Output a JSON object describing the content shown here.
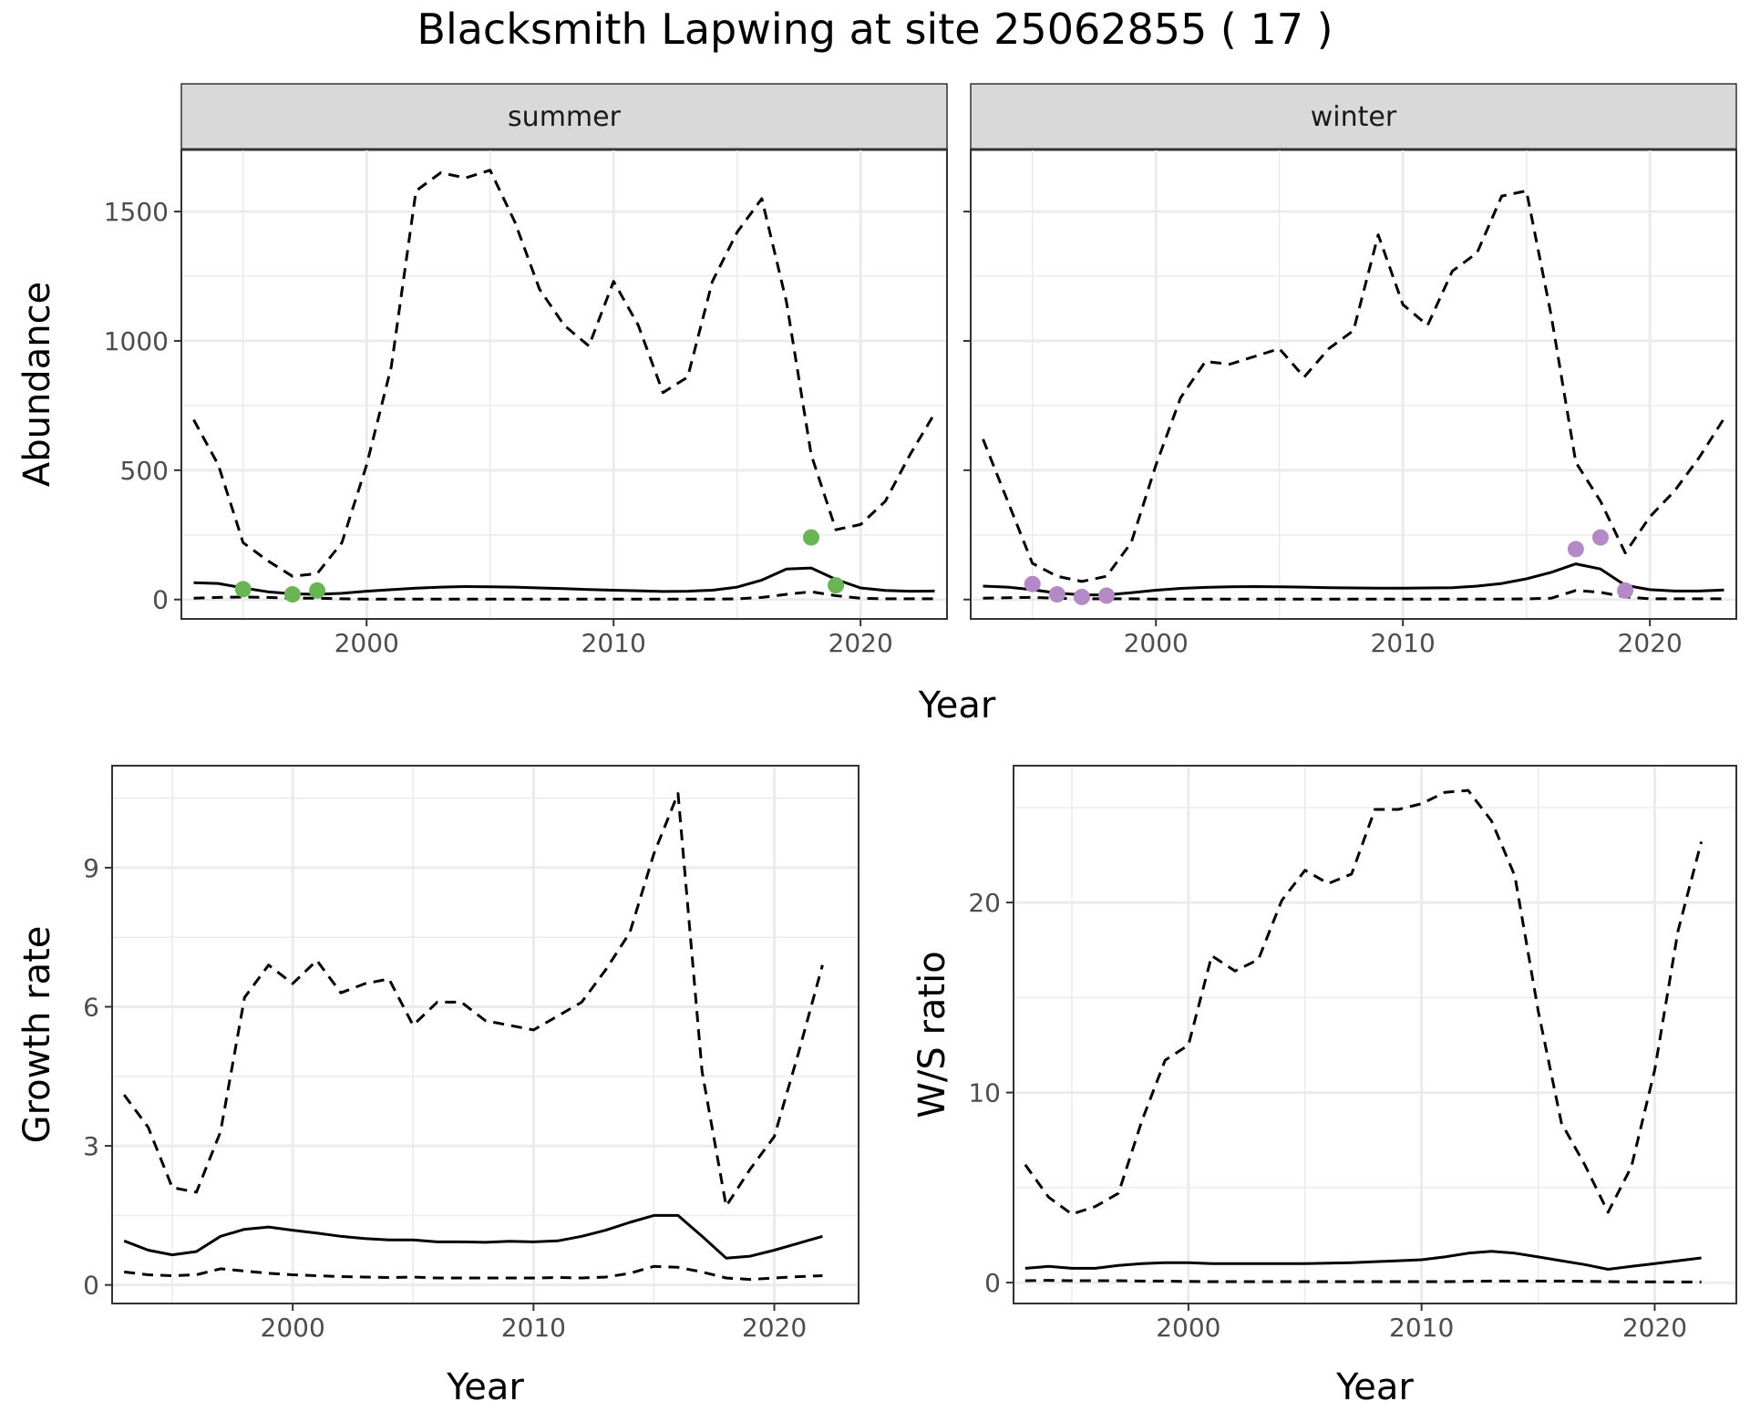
{
  "title": "Blacksmith Lapwing at site 25062855 ( 17 )",
  "colors": {
    "summer_points": "#6ab553",
    "winter_points": "#b48ac6",
    "line": "#000000",
    "grid": "#ebebeb",
    "strip_bg": "#d9d9d9"
  },
  "chart_data": [
    {
      "type": "line",
      "panel": "summer",
      "xlabel": "Year",
      "ylabel": "Abundance",
      "xlim": [
        1992.5,
        2023.5
      ],
      "ylim": [
        -75,
        1740
      ],
      "xticks": [
        2000,
        2010,
        2020
      ],
      "yticks": [
        0,
        500,
        1000,
        1500
      ],
      "grid": true,
      "series": [
        {
          "role": "estimate",
          "style": "solid",
          "x": [
            1993,
            1994,
            1995,
            1996,
            1997,
            1998,
            1999,
            2000,
            2001,
            2002,
            2003,
            2004,
            2005,
            2006,
            2007,
            2008,
            2009,
            2010,
            2011,
            2012,
            2013,
            2014,
            2015,
            2016,
            2017,
            2018,
            2019,
            2020,
            2021,
            2022,
            2023
          ],
          "y": [
            65,
            62,
            45,
            30,
            22,
            20,
            24,
            32,
            38,
            44,
            48,
            50,
            49,
            48,
            45,
            42,
            39,
            36,
            34,
            31,
            32,
            36,
            48,
            75,
            118,
            122,
            78,
            45,
            35,
            32,
            33
          ]
        },
        {
          "role": "upper",
          "style": "dashed",
          "x": [
            1993,
            1994,
            1995,
            1996,
            1997,
            1998,
            1999,
            2000,
            2001,
            2002,
            2003,
            2004,
            2005,
            2006,
            2007,
            2008,
            2009,
            2010,
            2011,
            2012,
            2013,
            2014,
            2015,
            2016,
            2017,
            2018,
            2019,
            2020,
            2021,
            2022,
            2023
          ],
          "y": [
            695,
            520,
            220,
            150,
            90,
            100,
            220,
            520,
            900,
            1580,
            1650,
            1630,
            1660,
            1460,
            1200,
            1060,
            980,
            1230,
            1060,
            800,
            860,
            1230,
            1420,
            1550,
            1150,
            560,
            270,
            290,
            380,
            560,
            720
          ]
        },
        {
          "role": "lower",
          "style": "dashed",
          "x": [
            1993,
            1994,
            1995,
            1996,
            1997,
            1998,
            1999,
            2000,
            2001,
            2002,
            2003,
            2004,
            2005,
            2006,
            2007,
            2008,
            2009,
            2010,
            2011,
            2012,
            2013,
            2014,
            2015,
            2016,
            2017,
            2018,
            2019,
            2020,
            2021,
            2022,
            2023
          ],
          "y": [
            5,
            8,
            10,
            8,
            5,
            5,
            3,
            2,
            2,
            2,
            2,
            2,
            2,
            2,
            2,
            2,
            2,
            2,
            2,
            2,
            2,
            2,
            3,
            8,
            20,
            30,
            15,
            5,
            3,
            3,
            3
          ]
        }
      ],
      "points": {
        "x": [
          1995,
          1997,
          1998,
          2018,
          2019
        ],
        "y": [
          40,
          20,
          35,
          240,
          55
        ]
      }
    },
    {
      "type": "line",
      "panel": "winter",
      "xlabel": "Year",
      "ylabel": "",
      "xlim": [
        1992.5,
        2023.5
      ],
      "ylim": [
        -75,
        1740
      ],
      "xticks": [
        2000,
        2010,
        2020
      ],
      "yticks": [
        0,
        500,
        1000,
        1500
      ],
      "grid": true,
      "series": [
        {
          "role": "estimate",
          "style": "solid",
          "x": [
            1993,
            1994,
            1995,
            1996,
            1997,
            1998,
            1999,
            2000,
            2001,
            2002,
            2003,
            2004,
            2005,
            2006,
            2007,
            2008,
            2009,
            2010,
            2011,
            2012,
            2013,
            2014,
            2015,
            2016,
            2017,
            2018,
            2019,
            2020,
            2021,
            2022,
            2023
          ],
          "y": [
            52,
            48,
            38,
            25,
            18,
            18,
            26,
            36,
            43,
            47,
            49,
            50,
            49,
            48,
            46,
            45,
            44,
            44,
            45,
            46,
            52,
            62,
            80,
            105,
            138,
            118,
            55,
            38,
            33,
            33,
            37
          ]
        },
        {
          "role": "upper",
          "style": "dashed",
          "x": [
            1993,
            1994,
            1995,
            1996,
            1997,
            1998,
            1999,
            2000,
            2001,
            2002,
            2003,
            2004,
            2005,
            2006,
            2007,
            2008,
            2009,
            2010,
            2011,
            2012,
            2013,
            2014,
            2015,
            2016,
            2017,
            2018,
            2019,
            2020,
            2021,
            2022,
            2023
          ],
          "y": [
            620,
            380,
            140,
            90,
            70,
            90,
            220,
            520,
            780,
            920,
            910,
            940,
            970,
            860,
            970,
            1040,
            1410,
            1140,
            1060,
            1270,
            1340,
            1560,
            1580,
            1100,
            530,
            380,
            180,
            320,
            420,
            550,
            700
          ]
        },
        {
          "role": "lower",
          "style": "dashed",
          "x": [
            1993,
            1994,
            1995,
            1996,
            1997,
            1998,
            1999,
            2000,
            2001,
            2002,
            2003,
            2004,
            2005,
            2006,
            2007,
            2008,
            2009,
            2010,
            2011,
            2012,
            2013,
            2014,
            2015,
            2016,
            2017,
            2018,
            2019,
            2020,
            2021,
            2022,
            2023
          ],
          "y": [
            5,
            7,
            8,
            5,
            3,
            3,
            3,
            2,
            2,
            2,
            2,
            2,
            2,
            2,
            2,
            2,
            2,
            2,
            2,
            2,
            2,
            2,
            3,
            5,
            35,
            28,
            10,
            3,
            3,
            3,
            3
          ]
        }
      ],
      "points": {
        "x": [
          1995,
          1996,
          1997,
          1998,
          2017,
          2018,
          2019
        ],
        "y": [
          60,
          20,
          10,
          15,
          195,
          240,
          35
        ]
      }
    },
    {
      "type": "line",
      "panel": "growth",
      "xlabel": "Year",
      "ylabel": "Growth rate",
      "xlim": [
        1992.5,
        2023.5
      ],
      "ylim": [
        -0.4,
        11.2
      ],
      "xticks": [
        2000,
        2010,
        2020
      ],
      "yticks": [
        0,
        3,
        6,
        9
      ],
      "grid": true,
      "series": [
        {
          "role": "estimate",
          "style": "solid",
          "x": [
            1993,
            1994,
            1995,
            1996,
            1997,
            1998,
            1999,
            2000,
            2001,
            2002,
            2003,
            2004,
            2005,
            2006,
            2007,
            2008,
            2009,
            2010,
            2011,
            2012,
            2013,
            2014,
            2015,
            2016,
            2017,
            2018,
            2019,
            2020,
            2021,
            2022
          ],
          "y": [
            0.95,
            0.75,
            0.65,
            0.72,
            1.05,
            1.2,
            1.25,
            1.18,
            1.12,
            1.05,
            1.0,
            0.97,
            0.97,
            0.93,
            0.93,
            0.92,
            0.94,
            0.93,
            0.95,
            1.05,
            1.18,
            1.35,
            1.5,
            1.5,
            1.05,
            0.58,
            0.62,
            0.75,
            0.9,
            1.05
          ]
        },
        {
          "role": "upper",
          "style": "dashed",
          "x": [
            1993,
            1994,
            1995,
            1996,
            1997,
            1998,
            1999,
            2000,
            2001,
            2002,
            2003,
            2004,
            2005,
            2006,
            2007,
            2008,
            2009,
            2010,
            2011,
            2012,
            2013,
            2014,
            2015,
            2016,
            2017,
            2018,
            2019,
            2020,
            2021,
            2022
          ],
          "y": [
            4.1,
            3.4,
            2.1,
            2.0,
            3.3,
            6.2,
            6.9,
            6.5,
            7.0,
            6.3,
            6.5,
            6.6,
            5.6,
            6.1,
            6.1,
            5.7,
            5.6,
            5.5,
            5.8,
            6.1,
            6.8,
            7.6,
            9.3,
            10.6,
            4.6,
            1.7,
            2.5,
            3.2,
            5.0,
            6.9
          ]
        },
        {
          "role": "lower",
          "style": "dashed",
          "x": [
            1993,
            1994,
            1995,
            1996,
            1997,
            1998,
            1999,
            2000,
            2001,
            2002,
            2003,
            2004,
            2005,
            2006,
            2007,
            2008,
            2009,
            2010,
            2011,
            2012,
            2013,
            2014,
            2015,
            2016,
            2017,
            2018,
            2019,
            2020,
            2021,
            2022
          ],
          "y": [
            0.28,
            0.22,
            0.2,
            0.22,
            0.35,
            0.3,
            0.25,
            0.22,
            0.2,
            0.18,
            0.17,
            0.16,
            0.17,
            0.15,
            0.15,
            0.15,
            0.15,
            0.15,
            0.16,
            0.15,
            0.17,
            0.25,
            0.4,
            0.38,
            0.28,
            0.15,
            0.12,
            0.15,
            0.18,
            0.2
          ]
        }
      ]
    },
    {
      "type": "line",
      "panel": "ratio",
      "xlabel": "Year",
      "ylabel": "W/S ratio",
      "xlim": [
        1992.5,
        2023.5
      ],
      "ylim": [
        -1.1,
        27.2
      ],
      "xticks": [
        2000,
        2010,
        2020
      ],
      "yticks": [
        0,
        10,
        20
      ],
      "grid": true,
      "series": [
        {
          "role": "estimate",
          "style": "solid",
          "x": [
            1993,
            1994,
            1995,
            1996,
            1997,
            1998,
            1999,
            2000,
            2001,
            2002,
            2003,
            2004,
            2005,
            2006,
            2007,
            2008,
            2009,
            2010,
            2011,
            2012,
            2013,
            2014,
            2015,
            2016,
            2017,
            2018,
            2019,
            2020,
            2021,
            2022
          ],
          "y": [
            0.75,
            0.85,
            0.75,
            0.75,
            0.9,
            1.0,
            1.05,
            1.05,
            1.0,
            1.0,
            1.0,
            1.0,
            1.0,
            1.02,
            1.05,
            1.1,
            1.15,
            1.2,
            1.35,
            1.55,
            1.65,
            1.55,
            1.35,
            1.15,
            0.95,
            0.7,
            0.85,
            1.0,
            1.15,
            1.3
          ]
        },
        {
          "role": "upper",
          "style": "dashed",
          "x": [
            1993,
            1994,
            1995,
            1996,
            1997,
            1998,
            1999,
            2000,
            2001,
            2002,
            2003,
            2004,
            2005,
            2006,
            2007,
            2008,
            2009,
            2010,
            2011,
            2012,
            2013,
            2014,
            2015,
            2016,
            2017,
            2018,
            2019,
            2020,
            2021,
            2022
          ],
          "y": [
            6.2,
            4.5,
            3.6,
            4.0,
            4.7,
            8.5,
            11.7,
            12.5,
            17.2,
            16.4,
            17.0,
            20.1,
            21.7,
            21.0,
            21.5,
            24.9,
            24.9,
            25.2,
            25.8,
            25.9,
            24.3,
            21.4,
            14.3,
            8.4,
            6.2,
            3.7,
            6.1,
            11.2,
            18.5,
            23.2
          ]
        },
        {
          "role": "lower",
          "style": "dashed",
          "x": [
            1993,
            1994,
            1995,
            1996,
            1997,
            1998,
            1999,
            2000,
            2001,
            2002,
            2003,
            2004,
            2005,
            2006,
            2007,
            2008,
            2009,
            2010,
            2011,
            2012,
            2013,
            2014,
            2015,
            2016,
            2017,
            2018,
            2019,
            2020,
            2021,
            2022
          ],
          "y": [
            0.1,
            0.12,
            0.1,
            0.1,
            0.1,
            0.08,
            0.08,
            0.06,
            0.05,
            0.05,
            0.05,
            0.05,
            0.05,
            0.05,
            0.05,
            0.05,
            0.05,
            0.05,
            0.05,
            0.07,
            0.08,
            0.08,
            0.08,
            0.08,
            0.07,
            0.05,
            0.04,
            0.04,
            0.03,
            0.03
          ]
        }
      ]
    }
  ]
}
